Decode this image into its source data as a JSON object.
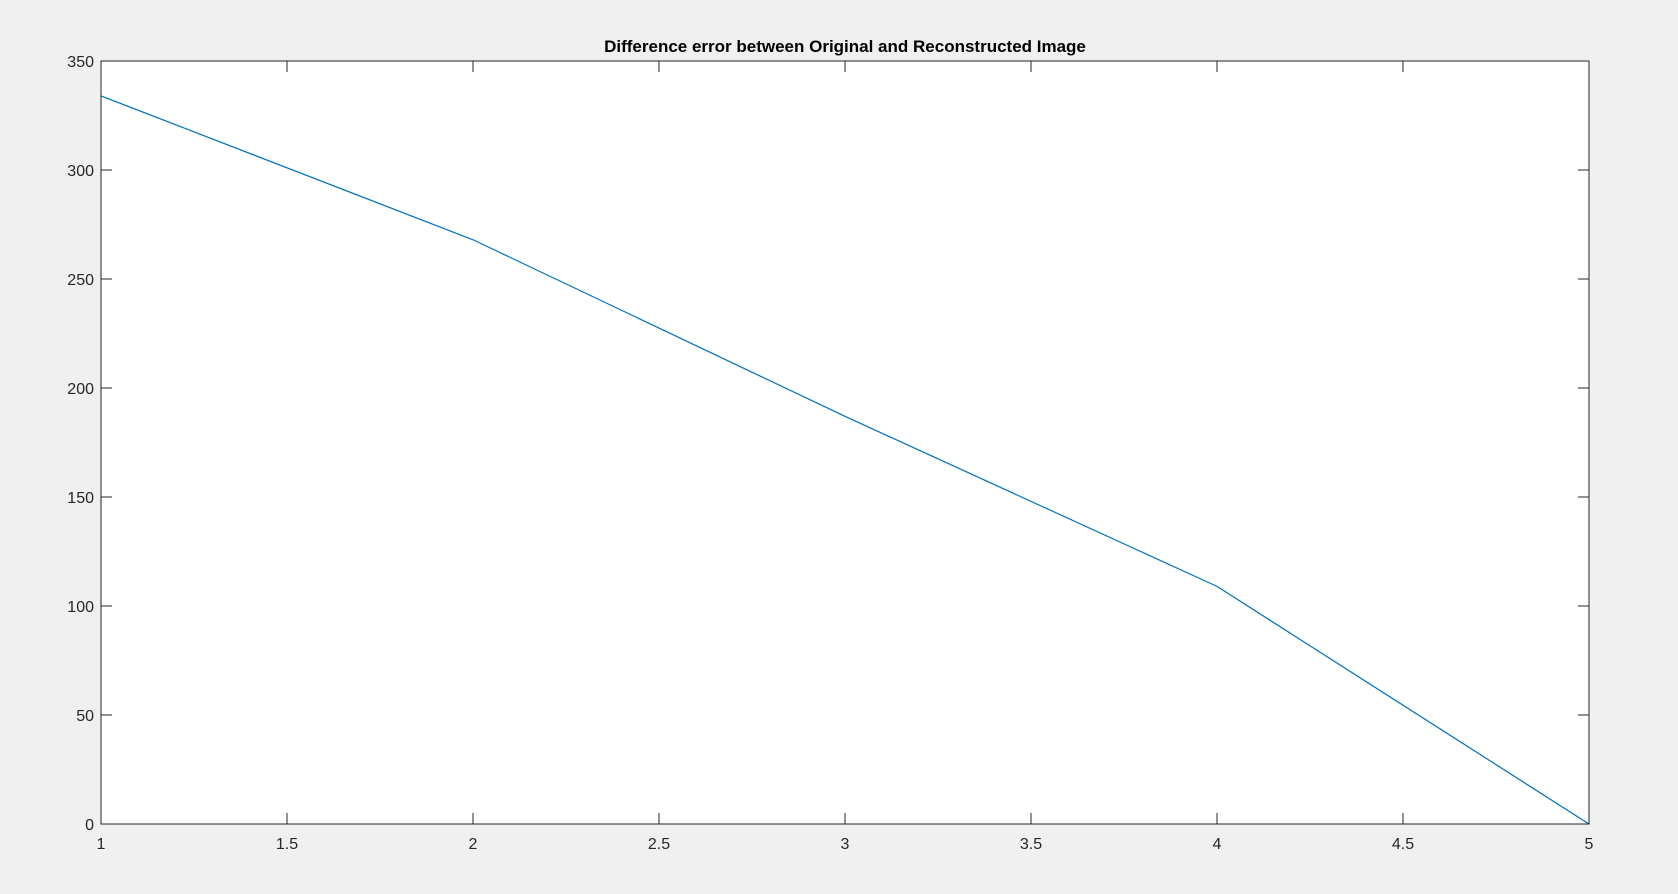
{
  "chart_data": {
    "type": "line",
    "title": "Difference error between Original and Reconstructed Image",
    "xlabel": "",
    "ylabel": "",
    "xlim": [
      1,
      5
    ],
    "ylim": [
      0,
      350
    ],
    "x_ticks": [
      1,
      1.5,
      2,
      2.5,
      3,
      3.5,
      4,
      4.5,
      5
    ],
    "x_tick_labels": [
      "1",
      "1.5",
      "2",
      "2.5",
      "3",
      "3.5",
      "4",
      "4.5",
      "5"
    ],
    "y_ticks": [
      0,
      50,
      100,
      150,
      200,
      250,
      300,
      350
    ],
    "y_tick_labels": [
      "0",
      "50",
      "100",
      "150",
      "200",
      "250",
      "300",
      "350"
    ],
    "grid": false,
    "box": true,
    "series": [
      {
        "x": [
          1,
          2,
          3,
          4,
          5
        ],
        "y": [
          334,
          268,
          187,
          109,
          0
        ],
        "color": "#0072bd"
      }
    ],
    "colors": {
      "figure_background": "#f0f0f0",
      "axes_background": "#ffffff",
      "axis_line": "#262626",
      "line": "#0072bd"
    }
  }
}
